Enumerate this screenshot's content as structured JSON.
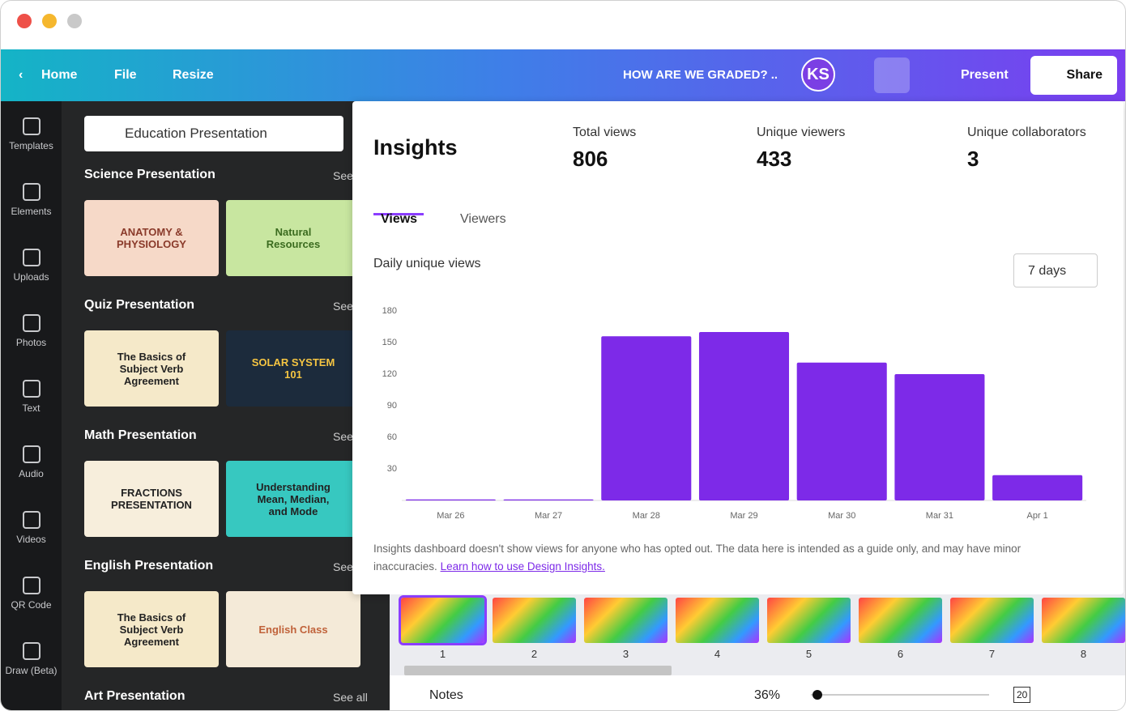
{
  "toolbar": {
    "home": "Home",
    "file": "File",
    "resize": "Resize",
    "doc_title": "HOW ARE WE GRADED? ..",
    "avatar": "KS",
    "present": "Present",
    "share": "Share"
  },
  "sidebar": {
    "items": [
      "Templates",
      "Elements",
      "Uploads",
      "Photos",
      "Text",
      "Audio",
      "Videos",
      "QR Code",
      "Draw (Beta)"
    ]
  },
  "search": {
    "query": "Education Presentation"
  },
  "library": {
    "sections": [
      {
        "title": "Science Presentation",
        "see": "See",
        "thumbs": [
          "ANATOMY & PHYSIOLOGY",
          "Natural Resources"
        ]
      },
      {
        "title": "Quiz Presentation",
        "see": "See",
        "thumbs": [
          "The Basics of Subject Verb Agreement",
          "SOLAR SYSTEM 101"
        ]
      },
      {
        "title": "Math Presentation",
        "see": "See",
        "thumbs": [
          "FRACTIONS PRESENTATION",
          "Understanding Mean, Median, and Mode"
        ]
      },
      {
        "title": "English Presentation",
        "see": "See",
        "thumbs": [
          "The Basics of Subject Verb Agreement",
          "English Class"
        ]
      },
      {
        "title": "Art Presentation",
        "see": "See all",
        "thumbs": []
      }
    ]
  },
  "insights": {
    "title": "Insights",
    "stats": [
      {
        "label": "Total views",
        "value": "806"
      },
      {
        "label": "Unique viewers",
        "value": "433"
      },
      {
        "label": "Unique collaborators",
        "value": "3"
      }
    ],
    "tabs": [
      "Views",
      "Viewers"
    ],
    "range": "7 days",
    "footnote": "Insights dashboard doesn't show views for anyone who has opted out. The data here is intended as a guide only, and may have minor inaccuracies.",
    "link": "Learn how to use Design Insights."
  },
  "chart_data": {
    "type": "bar",
    "title": "Daily unique views",
    "categories": [
      "Mar 26",
      "Mar 27",
      "Mar 28",
      "Mar 29",
      "Mar 30",
      "Mar 31",
      "Apr 1"
    ],
    "values": [
      1,
      1,
      156,
      160,
      131,
      120,
      24
    ],
    "color": "#7d2ae8",
    "ylim": [
      0,
      180
    ],
    "yticks": [
      30,
      60,
      90,
      120,
      150,
      180
    ],
    "grid": false
  },
  "filmstrip": {
    "pages": [
      "1",
      "2",
      "3",
      "4",
      "5",
      "6",
      "7",
      "8"
    ]
  },
  "footer": {
    "notes": "Notes",
    "zoom": "36%",
    "page_count": "20"
  }
}
